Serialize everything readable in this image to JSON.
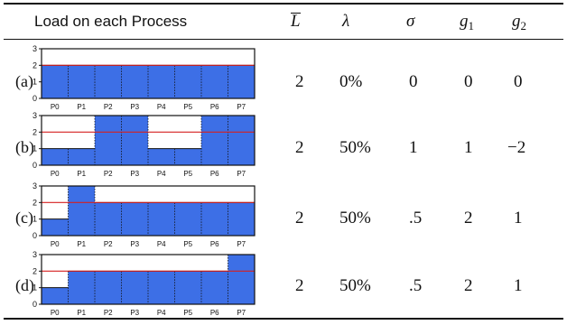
{
  "header": {
    "load_title": "Load on each Process",
    "L_symbol": "L",
    "lambda_symbol": "λ",
    "sigma_symbol": "σ",
    "g_symbol": "g",
    "g1_sub": "1",
    "g2_sub": "2"
  },
  "rows": [
    {
      "label": "(a)",
      "L": "2",
      "lambda": "0%",
      "sigma": "0",
      "g1": "0",
      "g2": "0"
    },
    {
      "label": "(b)",
      "L": "2",
      "lambda": "50%",
      "sigma": "1",
      "g1": "1",
      "g2": "−2"
    },
    {
      "label": "(c)",
      "L": "2",
      "lambda": "50%",
      "sigma": ".5",
      "g1": "2",
      "g2": "1"
    },
    {
      "label": "(d)",
      "L": "2",
      "lambda": "50%",
      "sigma": ".5",
      "g1": "2",
      "g2": "1"
    }
  ],
  "chart_data": [
    {
      "type": "bar",
      "categories": [
        "P0",
        "P1",
        "P2",
        "P3",
        "P4",
        "P5",
        "P6",
        "P7"
      ],
      "values": [
        2,
        2,
        2,
        2,
        2,
        2,
        2,
        2
      ],
      "yticks": [
        "0",
        "1",
        "2",
        "3"
      ],
      "ylim": [
        0,
        3
      ],
      "reference_line": 2
    },
    {
      "type": "bar",
      "categories": [
        "P0",
        "P1",
        "P2",
        "P3",
        "P4",
        "P5",
        "P6",
        "P7"
      ],
      "values": [
        1,
        1,
        3,
        3,
        1,
        1,
        3,
        3
      ],
      "yticks": [
        "0",
        "1",
        "2",
        "3"
      ],
      "ylim": [
        0,
        3
      ],
      "reference_line": 2
    },
    {
      "type": "bar",
      "categories": [
        "P0",
        "P1",
        "P2",
        "P3",
        "P4",
        "P5",
        "P6",
        "P7"
      ],
      "values": [
        1,
        3,
        2,
        2,
        2,
        2,
        2,
        2
      ],
      "yticks": [
        "0",
        "1",
        "2",
        "3"
      ],
      "ylim": [
        0,
        3
      ],
      "reference_line": 2
    },
    {
      "type": "bar",
      "categories": [
        "P0",
        "P1",
        "P2",
        "P3",
        "P4",
        "P5",
        "P6",
        "P7"
      ],
      "values": [
        1,
        2,
        2,
        2,
        2,
        2,
        2,
        3
      ],
      "yticks": [
        "0",
        "1",
        "2",
        "3"
      ],
      "ylim": [
        0,
        3
      ],
      "reference_line": 2
    }
  ],
  "colors": {
    "bar": "#3d6fe6",
    "reference_line": "#d62020",
    "text": "#111111"
  }
}
